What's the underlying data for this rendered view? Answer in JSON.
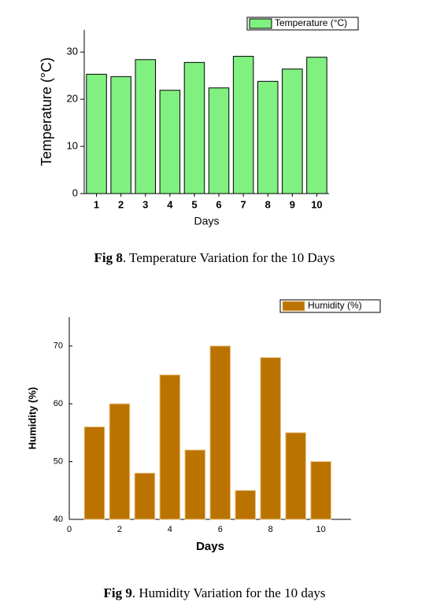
{
  "chart_data": [
    {
      "type": "bar",
      "figure_label": "Fig 8",
      "caption": ". Temperature Variation for the 10 Days",
      "x_label": "Days",
      "y_label": "Temperature (°C)",
      "categories": [
        "1",
        "2",
        "3",
        "4",
        "5",
        "6",
        "7",
        "8",
        "9",
        "10"
      ],
      "series": [
        {
          "name": "Temperature (°C)",
          "color": "#80f080",
          "values": [
            25.3,
            24.8,
            28.4,
            21.9,
            27.8,
            22.4,
            29.1,
            23.8,
            26.4,
            28.9
          ]
        }
      ],
      "ylim": [
        0,
        34.7
      ],
      "yticks": [
        0,
        10,
        20,
        30
      ],
      "legend": "upper right"
    },
    {
      "type": "bar",
      "figure_label": "Fig 9",
      "caption": ". Humidity Variation for the 10 days",
      "x_label": "Days",
      "y_label": "Humidity (%)",
      "x": [
        1,
        2,
        3,
        4,
        5,
        6,
        7,
        8,
        9,
        10
      ],
      "series": [
        {
          "name": "Humidity (%)",
          "color": "#bb7300",
          "values": [
            56,
            60,
            48,
            65,
            52,
            70,
            45,
            68,
            55,
            50
          ]
        }
      ],
      "xlim": [
        0,
        11.2
      ],
      "xticks": [
        0,
        2,
        4,
        6,
        8,
        10
      ],
      "ylim": [
        40,
        75
      ],
      "yticks": [
        40,
        50,
        60,
        70
      ],
      "legend": "upper right"
    }
  ]
}
